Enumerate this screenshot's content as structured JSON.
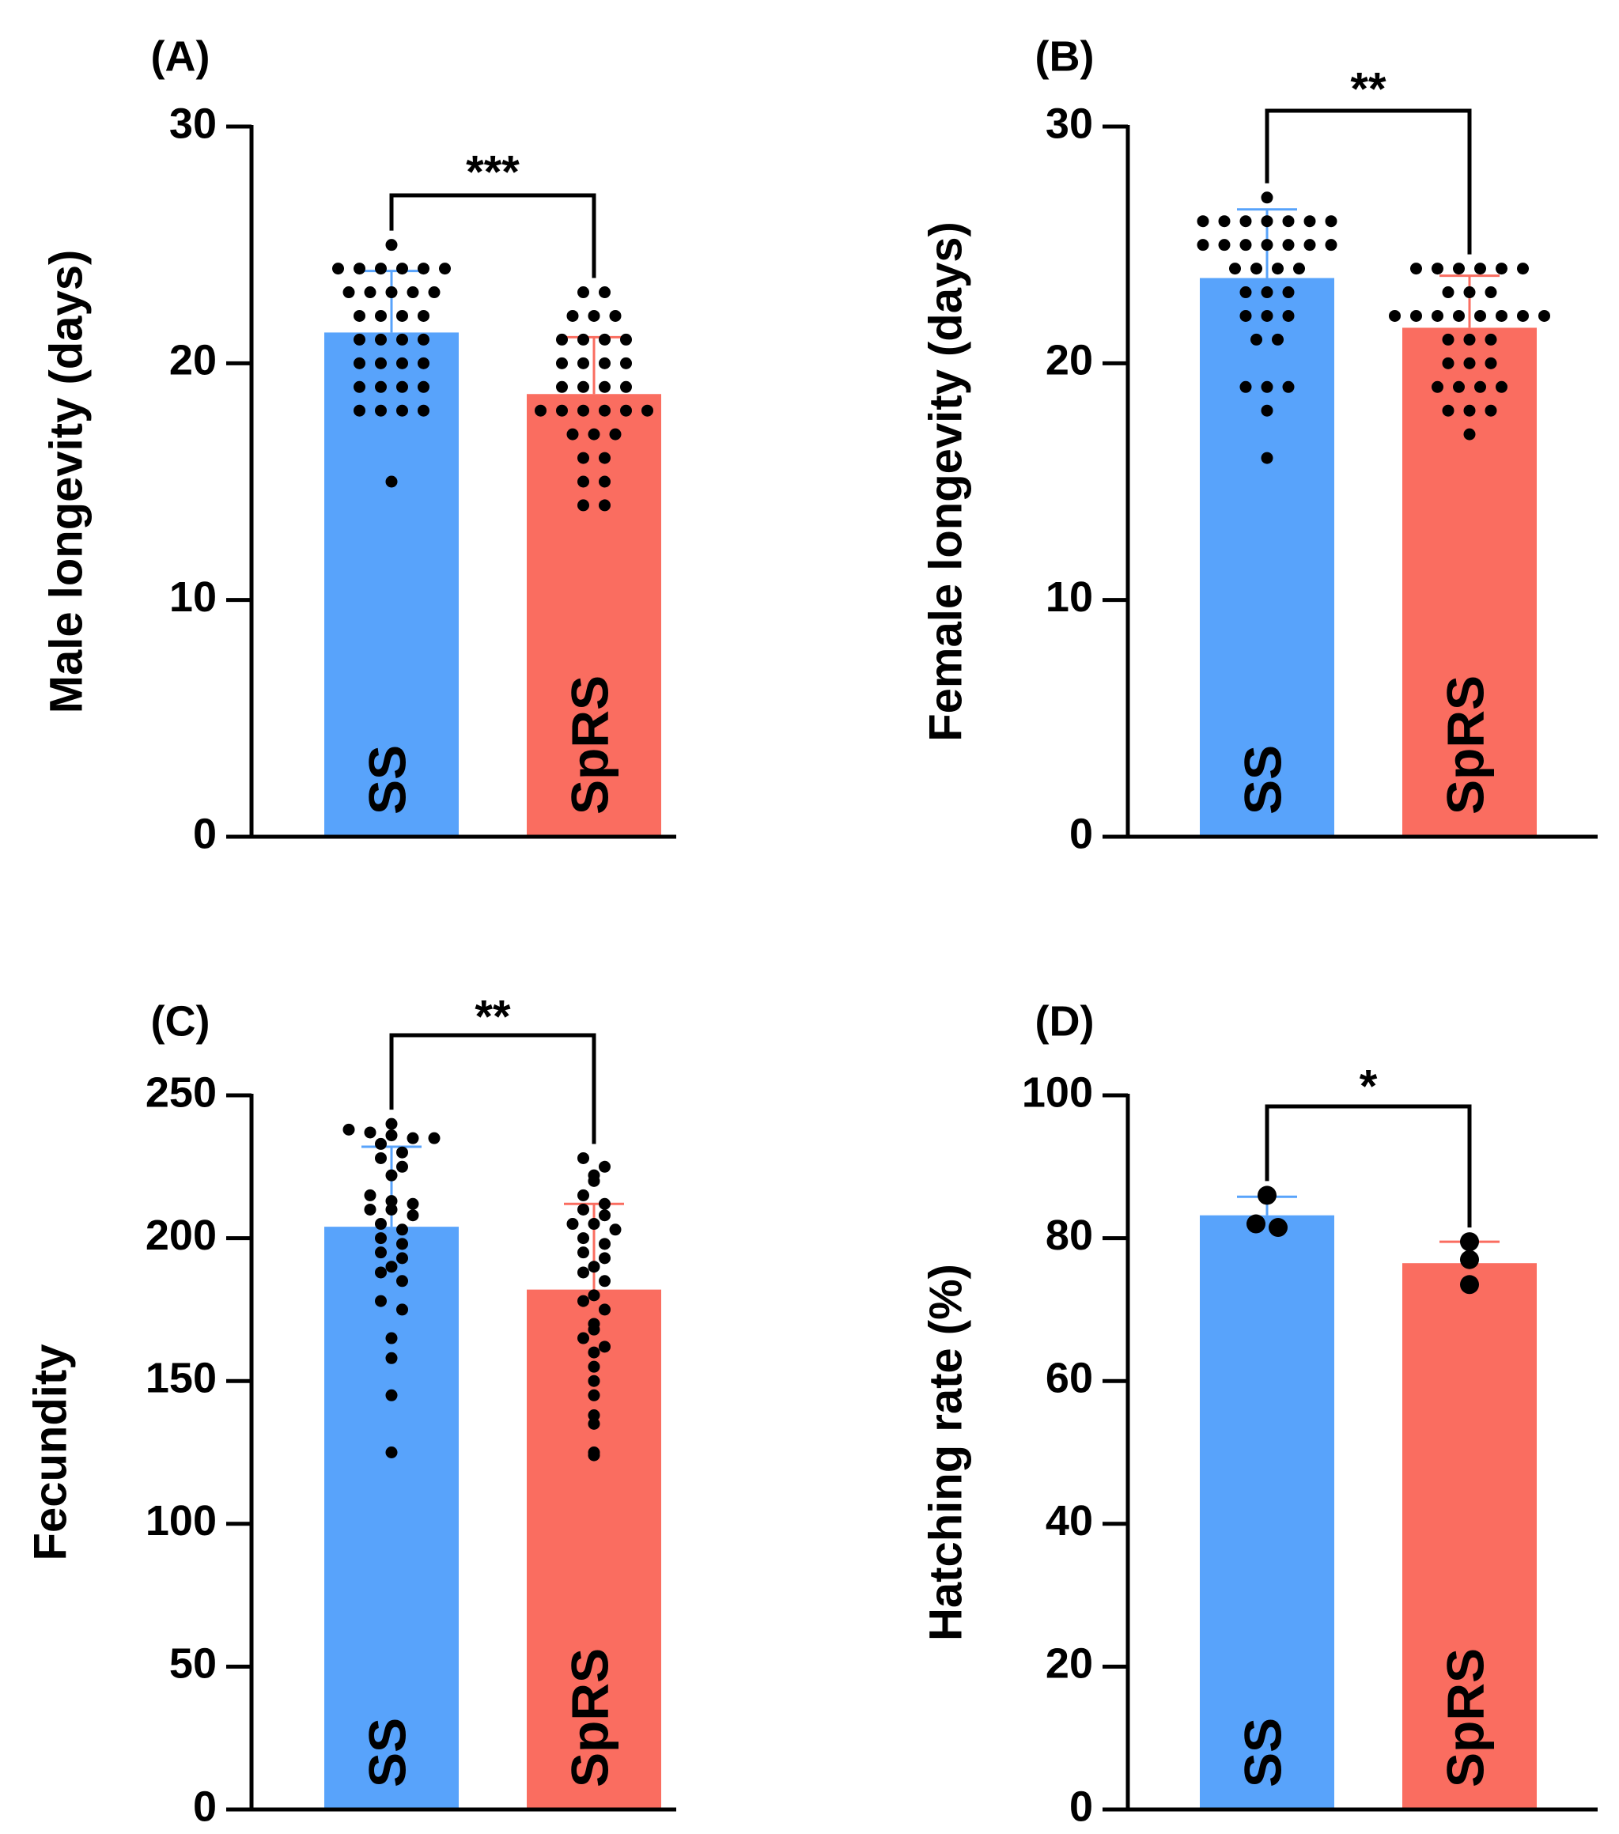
{
  "colors": {
    "ss": "#58a3fb",
    "sprs": "#fa6d60",
    "ink": "#000000"
  },
  "chart_data": [
    {
      "type": "bar",
      "panel_label": "(A)",
      "ylabel": "Male longevity (days)",
      "ylim": [
        0,
        30
      ],
      "yticks": [
        0,
        10,
        20,
        30
      ],
      "ytick_labels": [
        "0",
        "10",
        "20",
        "30"
      ],
      "categories": [
        "SS",
        "SpRS"
      ],
      "significance": "***",
      "series": [
        {
          "name": "SS",
          "color": "#58a3fb",
          "mean": 21.3,
          "sd": 2.6,
          "points": [
            25,
            24,
            24,
            24,
            24,
            24,
            24,
            23,
            23,
            23,
            23,
            23,
            22,
            22,
            22,
            22,
            21,
            21,
            21,
            21,
            20,
            20,
            20,
            20,
            19,
            19,
            19,
            19,
            18,
            18,
            18,
            18,
            15
          ]
        },
        {
          "name": "SpRS",
          "color": "#fa6d60",
          "mean": 18.7,
          "sd": 2.4,
          "points": [
            23,
            23,
            22,
            22,
            22,
            21,
            21,
            21,
            21,
            20,
            20,
            20,
            20,
            19,
            19,
            19,
            19,
            18,
            18,
            18,
            18,
            18,
            18,
            17,
            17,
            17,
            16,
            16,
            15,
            15,
            14,
            14
          ]
        }
      ]
    },
    {
      "type": "bar",
      "panel_label": "(B)",
      "ylabel": "Female longevity (days)",
      "ylim": [
        0,
        30
      ],
      "yticks": [
        0,
        10,
        20,
        30
      ],
      "ytick_labels": [
        "0",
        "10",
        "20",
        "30"
      ],
      "categories": [
        "SS",
        "SpRS"
      ],
      "significance": "**",
      "series": [
        {
          "name": "SS",
          "color": "#58a3fb",
          "mean": 23.6,
          "sd": 2.9,
          "points": [
            27,
            26,
            26,
            26,
            26,
            26,
            26,
            26,
            25,
            25,
            25,
            25,
            25,
            25,
            25,
            24,
            24,
            24,
            24,
            23,
            23,
            23,
            22,
            22,
            22,
            21,
            21,
            19,
            19,
            19,
            18,
            16
          ]
        },
        {
          "name": "SpRS",
          "color": "#fa6d60",
          "mean": 21.5,
          "sd": 2.2,
          "points": [
            24,
            24,
            24,
            24,
            24,
            24,
            23,
            23,
            23,
            22,
            22,
            22,
            22,
            22,
            22,
            22,
            22,
            21,
            21,
            21,
            20,
            20,
            20,
            19,
            19,
            19,
            19,
            18,
            18,
            18,
            17
          ]
        }
      ]
    },
    {
      "type": "bar",
      "panel_label": "(C)",
      "ylabel": "Fecundity",
      "ylim": [
        0,
        250
      ],
      "yticks": [
        0,
        50,
        100,
        150,
        200,
        250
      ],
      "ytick_labels": [
        "0",
        "50",
        "100",
        "150",
        "200",
        "250"
      ],
      "categories": [
        "SS",
        "SpRS"
      ],
      "significance": "**",
      "series": [
        {
          "name": "SS",
          "color": "#58a3fb",
          "mean": 204,
          "sd": 28,
          "points": [
            240,
            238,
            237,
            236,
            235,
            235,
            233,
            230,
            228,
            225,
            222,
            215,
            213,
            212,
            210,
            210,
            208,
            205,
            203,
            200,
            198,
            195,
            193,
            190,
            188,
            185,
            178,
            175,
            165,
            158,
            145,
            125
          ]
        },
        {
          "name": "SpRS",
          "color": "#fa6d60",
          "mean": 182,
          "sd": 30,
          "points": [
            228,
            225,
            222,
            220,
            215,
            212,
            210,
            208,
            205,
            205,
            203,
            200,
            198,
            195,
            193,
            190,
            188,
            185,
            180,
            178,
            175,
            170,
            168,
            165,
            162,
            160,
            155,
            150,
            145,
            138,
            135,
            125,
            124
          ]
        }
      ]
    },
    {
      "type": "bar",
      "panel_label": "(D)",
      "ylabel": "Hatching rate (%)",
      "ylim": [
        0,
        100
      ],
      "yticks": [
        0,
        20,
        40,
        60,
        80,
        100
      ],
      "ytick_labels": [
        "0",
        "20",
        "40",
        "60",
        "80",
        "100"
      ],
      "categories": [
        "SS",
        "SpRS"
      ],
      "significance": "*",
      "series": [
        {
          "name": "SS",
          "color": "#58a3fb",
          "mean": 83.2,
          "sd": 2.6,
          "points": [
            86,
            82,
            81.5
          ]
        },
        {
          "name": "SpRS",
          "color": "#fa6d60",
          "mean": 76.5,
          "sd": 3.0,
          "points": [
            79.5,
            77,
            73.5
          ]
        }
      ]
    }
  ]
}
